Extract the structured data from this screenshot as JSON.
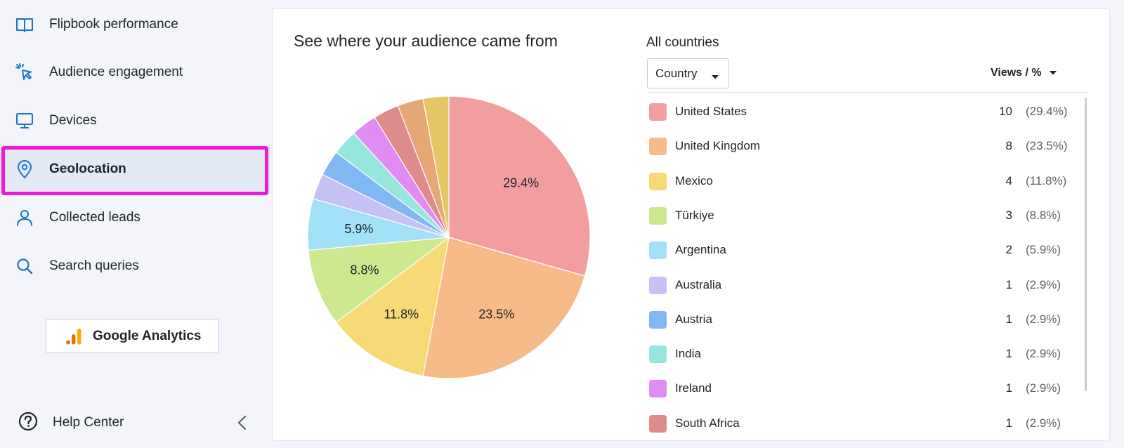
{
  "sidebar": {
    "items": [
      {
        "label": "Flipbook performance",
        "icon": "book-icon"
      },
      {
        "label": "Audience engagement",
        "icon": "cursor-click-icon"
      },
      {
        "label": "Devices",
        "icon": "monitor-icon"
      },
      {
        "label": "Geolocation",
        "icon": "map-pin-icon",
        "active": true
      },
      {
        "label": "Collected leads",
        "icon": "person-icon"
      },
      {
        "label": "Search queries",
        "icon": "search-icon"
      }
    ],
    "ga_button_label": "Google Analytics",
    "help_label": "Help Center"
  },
  "main": {
    "title": "See where your audience came from",
    "filter_title": "All countries",
    "select_value": "Country",
    "sort_label": "Views / %"
  },
  "colors": {
    "accent": "#1a73c8",
    "highlight": "#ee18d8",
    "active_bg": "#e3e9f5"
  },
  "chart_data": {
    "type": "pie",
    "slices": [
      {
        "name": "United States",
        "value": 10,
        "pct": "29.4%",
        "color": "#f29e9e",
        "show_label": true
      },
      {
        "name": "United Kingdom",
        "value": 8,
        "pct": "23.5%",
        "color": "#f6bb88",
        "show_label": true
      },
      {
        "name": "Mexico",
        "value": 4,
        "pct": "11.8%",
        "color": "#f7da75",
        "show_label": true
      },
      {
        "name": "Türkiye",
        "value": 3,
        "pct": "8.8%",
        "color": "#cde88f",
        "show_label": true
      },
      {
        "name": "Argentina",
        "value": 2,
        "pct": "5.9%",
        "color": "#a3e1f8",
        "show_label": true
      },
      {
        "name": "Australia",
        "value": 1,
        "pct": "2.9%",
        "color": "#c7c2f6",
        "show_label": false
      },
      {
        "name": "Austria",
        "value": 1,
        "pct": "2.9%",
        "color": "#80b8f4",
        "show_label": false
      },
      {
        "name": "India",
        "value": 1,
        "pct": "2.9%",
        "color": "#97e6de",
        "show_label": false
      },
      {
        "name": "Ireland",
        "value": 1,
        "pct": "2.9%",
        "color": "#e18cf2",
        "show_label": false
      },
      {
        "name": "South Africa",
        "value": 1,
        "pct": "2.9%",
        "color": "#dd8b8b",
        "show_label": false
      },
      {
        "value": 1,
        "color": "#e4a775",
        "show_label": false
      },
      {
        "value": 1,
        "color": "#e4c764",
        "show_label": false
      }
    ]
  }
}
